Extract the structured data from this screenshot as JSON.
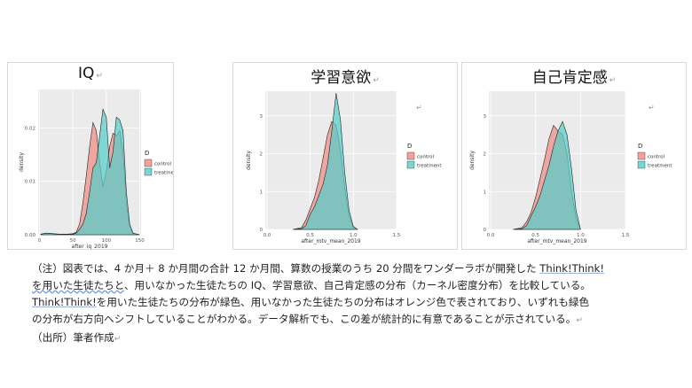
{
  "legend": {
    "title": "D",
    "items": [
      "control",
      "treatment"
    ],
    "colors": [
      "#f08a82",
      "#55cdc9"
    ]
  },
  "colors": {
    "control_fill": "#f08a82",
    "treatment_fill": "#55cdc9",
    "overlap_fill": "#9a9b93",
    "panel_bg": "#ebebeb",
    "grid": "#ffffff"
  },
  "chart_data": [
    {
      "type": "area",
      "title": "IQ",
      "title_mark": "↵",
      "xlabel": "after_iq_2019",
      "ylabel": "density",
      "xlim": [
        -2,
        152
      ],
      "ylim": [
        0,
        0.0272
      ],
      "xticks": [
        "0",
        "50",
        "100",
        "150"
      ],
      "xtick_values": [
        0,
        50,
        100,
        150
      ],
      "yticks": [
        "0.00",
        "0.01",
        "0.02"
      ],
      "ytick_values": [
        0,
        0.01,
        0.02
      ],
      "series": [
        {
          "name": "control",
          "x": [
            2,
            10,
            20,
            30,
            40,
            50,
            55,
            60,
            65,
            70,
            75,
            80,
            85,
            90,
            95,
            100,
            105,
            110,
            115,
            120,
            125,
            130,
            135,
            140,
            150
          ],
          "y": [
            0.0001,
            0.0003,
            0.0002,
            0.0001,
            0.0001,
            0.0002,
            0.0005,
            0.002,
            0.006,
            0.011,
            0.0165,
            0.021,
            0.0195,
            0.0135,
            0.009,
            0.012,
            0.0165,
            0.019,
            0.0185,
            0.0195,
            0.0155,
            0.006,
            0.0015,
            0.0002,
            0
          ]
        },
        {
          "name": "treatment",
          "x": [
            2,
            10,
            20,
            30,
            40,
            50,
            55,
            60,
            65,
            70,
            75,
            80,
            85,
            90,
            95,
            100,
            105,
            110,
            115,
            120,
            125,
            130,
            135,
            140,
            150
          ],
          "y": [
            0.0001,
            0.0003,
            0.0002,
            0.0001,
            0.0001,
            0.0001,
            0.0003,
            0.001,
            0.002,
            0.004,
            0.008,
            0.0125,
            0.0135,
            0.0185,
            0.0235,
            0.022,
            0.0125,
            0.0155,
            0.022,
            0.0215,
            0.0195,
            0.008,
            0.002,
            0.0003,
            0
          ]
        }
      ]
    },
    {
      "type": "area",
      "title": "学習意欲",
      "title_mark": "↵",
      "xlabel": "after_mtv_mean_2019",
      "ylabel": "density",
      "stray_mark": "↵",
      "xlim": [
        -0.02,
        1.5
      ],
      "ylim": [
        0,
        3.65
      ],
      "xticks": [
        "0.0",
        "0.5",
        "1.0",
        "1.5"
      ],
      "xtick_values": [
        0,
        0.5,
        1.0,
        1.5
      ],
      "yticks": [
        "0",
        "1",
        "2",
        "3"
      ],
      "ytick_values": [
        0,
        1,
        2,
        3
      ],
      "series": [
        {
          "name": "control",
          "x": [
            0.3,
            0.4,
            0.45,
            0.5,
            0.55,
            0.6,
            0.65,
            0.7,
            0.75,
            0.8,
            0.85,
            0.9,
            0.95,
            1.0,
            1.05
          ],
          "y": [
            0,
            0.05,
            0.25,
            0.55,
            0.85,
            1.3,
            1.9,
            2.5,
            2.85,
            2.75,
            2.1,
            1.1,
            0.35,
            0.05,
            0
          ]
        },
        {
          "name": "treatment",
          "x": [
            0.3,
            0.4,
            0.45,
            0.5,
            0.55,
            0.6,
            0.65,
            0.7,
            0.75,
            0.8,
            0.85,
            0.9,
            0.95,
            1.0,
            1.05
          ],
          "y": [
            0,
            0.02,
            0.1,
            0.4,
            0.6,
            0.9,
            1.2,
            1.7,
            2.6,
            3.6,
            2.9,
            1.5,
            0.5,
            0.08,
            0
          ]
        }
      ]
    },
    {
      "type": "area",
      "title": "自己肯定感",
      "title_mark": "↵",
      "xlabel": "after_mtv_mean_2019",
      "ylabel": "density",
      "stray_mark": "↵",
      "xlim": [
        -0.02,
        1.5
      ],
      "ylim": [
        0,
        3.65
      ],
      "xticks": [
        "0.0",
        "0.5",
        "1.0",
        "1.5"
      ],
      "xtick_values": [
        0,
        0.5,
        1.0,
        1.5
      ],
      "yticks": [
        "0",
        "1",
        "2",
        "3"
      ],
      "ytick_values": [
        0,
        1,
        2,
        3
      ],
      "series": [
        {
          "name": "control",
          "x": [
            0.25,
            0.35,
            0.4,
            0.45,
            0.5,
            0.55,
            0.6,
            0.65,
            0.7,
            0.75,
            0.8,
            0.85,
            0.9,
            0.95,
            1.0
          ],
          "y": [
            0,
            0.05,
            0.2,
            0.45,
            0.85,
            1.35,
            1.85,
            2.4,
            2.75,
            2.6,
            2.5,
            2.0,
            1.0,
            0.3,
            0
          ]
        },
        {
          "name": "treatment",
          "x": [
            0.25,
            0.35,
            0.4,
            0.45,
            0.5,
            0.55,
            0.6,
            0.65,
            0.7,
            0.75,
            0.8,
            0.85,
            0.9,
            0.95,
            1.0
          ],
          "y": [
            0,
            0.02,
            0.1,
            0.35,
            0.6,
            0.9,
            1.3,
            1.7,
            2.2,
            2.6,
            2.85,
            2.5,
            1.6,
            0.5,
            0
          ]
        }
      ]
    }
  ],
  "caption": {
    "l1_a": "（注）図表では、4 か月＋ 8 か月間の合計 12 か月間、算数の授業のうち 20 分間をワンダーラボが開発した ",
    "l1_b": "Think!Think!",
    "l2_a": "を用いた生徒たちと",
    "l2_b": "、用いなかった生徒たちの IQ、学習意欲、自己肯定感の分布（カーネル密度分布）を比較している。",
    "l3_a": "Think!Think!",
    "l3_b": "を用いた生徒たちの分布が緑色、用いなかった生徒たちの分布はオレンジ色で表されており、いずれも緑色",
    "l4": "の分布が右方向へシフトしていることがわかる。データ解析でも、この差が統計的に有意であることが示されている。",
    "l4_mark": "↵",
    "l5": "（出所）筆者作成",
    "l5_mark": "↵"
  }
}
